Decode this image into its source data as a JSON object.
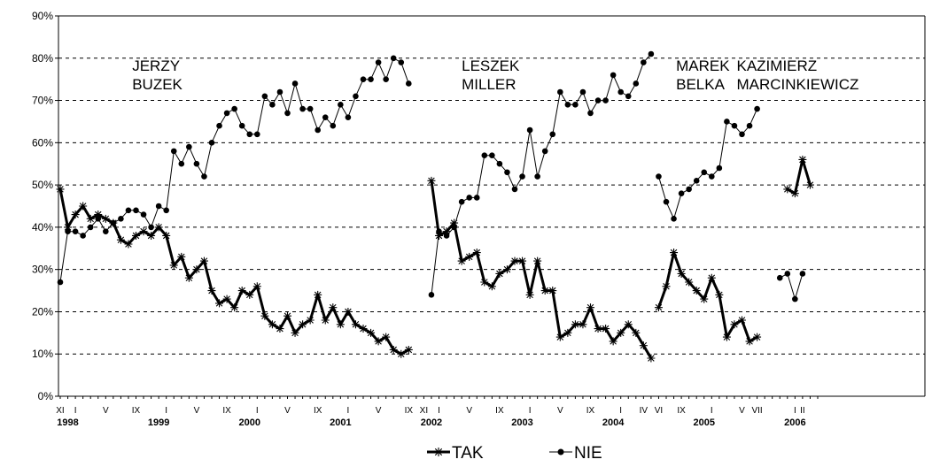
{
  "chart_data": {
    "type": "line",
    "ylim": [
      0,
      90
    ],
    "y_ticks": [
      "0%",
      "10%",
      "20%",
      "30%",
      "40%",
      "50%",
      "60%",
      "70%",
      "80%",
      "90%"
    ],
    "grid": "horizontal-dashed",
    "x_ticks": [
      {
        "label": "XI",
        "x": 0
      },
      {
        "label": "I",
        "x": 2
      },
      {
        "label": "V",
        "x": 6
      },
      {
        "label": "IX",
        "x": 10
      },
      {
        "label": "I",
        "x": 14
      },
      {
        "label": "V",
        "x": 18
      },
      {
        "label": "IX",
        "x": 22
      },
      {
        "label": "I",
        "x": 26
      },
      {
        "label": "V",
        "x": 30
      },
      {
        "label": "IX",
        "x": 34
      },
      {
        "label": "I",
        "x": 38
      },
      {
        "label": "V",
        "x": 42
      },
      {
        "label": "IX",
        "x": 46
      },
      {
        "label": "XI",
        "x": 48
      },
      {
        "label": "I",
        "x": 50
      },
      {
        "label": "V",
        "x": 54
      },
      {
        "label": "IX",
        "x": 58
      },
      {
        "label": "I",
        "x": 62
      },
      {
        "label": "V",
        "x": 66
      },
      {
        "label": "IX",
        "x": 70
      },
      {
        "label": "I",
        "x": 74
      },
      {
        "label": "IV",
        "x": 77
      },
      {
        "label": "VI",
        "x": 79
      },
      {
        "label": "IX",
        "x": 82
      },
      {
        "label": "I",
        "x": 86
      },
      {
        "label": "V",
        "x": 90
      },
      {
        "label": "VII",
        "x": 92
      },
      {
        "label": "I",
        "x": 97
      },
      {
        "label": "II",
        "x": 98
      }
    ],
    "years": [
      {
        "label": "1998",
        "x": 1
      },
      {
        "label": "1999",
        "x": 13
      },
      {
        "label": "2000",
        "x": 25
      },
      {
        "label": "2001",
        "x": 37
      },
      {
        "label": "2002",
        "x": 49
      },
      {
        "label": "2003",
        "x": 61
      },
      {
        "label": "2004",
        "x": 73
      },
      {
        "label": "2005",
        "x": 85
      },
      {
        "label": "2006",
        "x": 97
      }
    ],
    "annotations": [
      {
        "lines": [
          "JERZY",
          "BUZEK"
        ],
        "x": 9.5,
        "y": 77
      },
      {
        "lines": [
          "LESZEK",
          "MILLER"
        ],
        "x": 53,
        "y": 77
      },
      {
        "lines": [
          "MAREK",
          "BELKA"
        ],
        "x": 81.3,
        "y": 77
      },
      {
        "lines": [
          "KAZIMIERZ",
          "MARCINKIEWICZ"
        ],
        "x": 89.3,
        "y": 77
      }
    ],
    "legend_position": "bottom-center",
    "series": [
      {
        "name": "TAK",
        "color": "#000000",
        "marker": "asterisk",
        "segments": [
          {
            "x_start": 0,
            "values": [
              49,
              40,
              43,
              45,
              42,
              43,
              42,
              41,
              37,
              36,
              38,
              39,
              38,
              40,
              38,
              31,
              33,
              28,
              30,
              32,
              25,
              22,
              23,
              21,
              25,
              24,
              26,
              19,
              17,
              16,
              19,
              15,
              17,
              18,
              24,
              18,
              21,
              17,
              20,
              17,
              16,
              15,
              13,
              14,
              11,
              10,
              11
            ]
          },
          {
            "x_start": 49,
            "values": [
              51,
              38,
              39,
              41,
              32,
              33,
              34,
              27,
              26,
              29,
              30,
              32,
              32,
              24,
              32,
              25,
              25,
              14,
              15,
              17,
              17,
              21,
              16,
              16,
              13,
              15,
              17,
              15,
              12,
              9
            ]
          },
          {
            "x_start": 79,
            "values": [
              21,
              26,
              34,
              29,
              27,
              25,
              23,
              28,
              24,
              14,
              17,
              18,
              13,
              14
            ]
          },
          {
            "x_start": 96,
            "values": [
              49,
              48,
              56,
              50
            ]
          }
        ]
      },
      {
        "name": "NIE",
        "color": "#000000",
        "marker": "circle",
        "segments": [
          {
            "x_start": 0,
            "values": [
              27,
              39,
              39,
              38,
              40,
              42,
              39,
              41,
              42,
              44,
              44,
              43,
              40,
              45,
              44,
              58,
              55,
              59,
              55,
              52,
              60,
              64,
              67,
              68,
              64,
              62,
              62,
              71,
              69,
              72,
              67,
              74,
              68,
              68,
              63,
              66,
              64,
              69,
              66,
              71,
              75,
              75,
              79,
              75,
              80,
              79,
              74
            ]
          },
          {
            "x_start": 49,
            "values": [
              24,
              39,
              38,
              40,
              46,
              47,
              47,
              57,
              57,
              55,
              53,
              49,
              52,
              63,
              52,
              58,
              62,
              72,
              69,
              69,
              72,
              67,
              70,
              70,
              76,
              72,
              71,
              74,
              79,
              81
            ]
          },
          {
            "x_start": 79,
            "values": [
              52,
              46,
              42,
              48,
              49,
              51,
              53,
              52,
              54,
              65,
              64,
              62,
              64,
              68
            ]
          },
          {
            "x_start": 95,
            "values": [
              28,
              29,
              23,
              29
            ]
          }
        ]
      }
    ]
  }
}
